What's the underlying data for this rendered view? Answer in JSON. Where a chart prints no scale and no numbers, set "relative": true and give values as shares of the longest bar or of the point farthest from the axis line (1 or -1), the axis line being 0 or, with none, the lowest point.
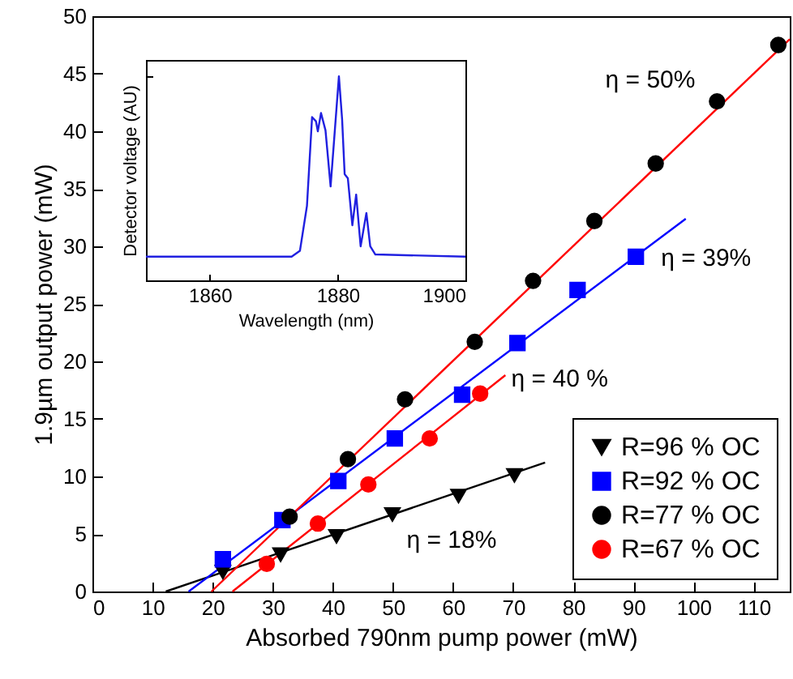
{
  "chart_data": [
    {
      "type": "scatter",
      "xlabel": "Absorbed 790nm pump power (mW)",
      "ylabel": "1.9µm output power (mW)",
      "xlim": [
        0,
        116
      ],
      "ylim": [
        0,
        50
      ],
      "xticks": [
        0,
        10,
        20,
        30,
        40,
        50,
        60,
        70,
        80,
        90,
        100,
        110
      ],
      "yticks": [
        0,
        5,
        10,
        15,
        20,
        25,
        30,
        35,
        40,
        45,
        50
      ],
      "grid": false,
      "legend": "bottom right",
      "series": [
        {
          "name": "R=96 % OC",
          "color": "#000000",
          "marker": "triangle",
          "x": [
            21.7,
            31.3,
            40.6,
            49.9,
            60.9,
            70.2
          ],
          "values": [
            1.7,
            3.2,
            4.8,
            6.7,
            8.3,
            10.1
          ]
        },
        {
          "name": "R=92 % OC",
          "color": "#0000ff",
          "marker": "square",
          "x": [
            21.7,
            31.6,
            40.9,
            50.3,
            61.5,
            70.7,
            80.7,
            90.4
          ],
          "values": [
            2.8,
            6.2,
            9.6,
            13.3,
            17.1,
            21.6,
            26.2,
            29.1
          ]
        },
        {
          "name": "R=77 % OC",
          "color": "#000000",
          "marker": "circle",
          "x": [
            32.8,
            42.5,
            52.0,
            63.6,
            73.3,
            83.5,
            93.7,
            103.9,
            114.1
          ],
          "values": [
            6.5,
            11.5,
            16.7,
            21.7,
            27.0,
            32.2,
            37.2,
            42.6,
            47.5
          ]
        },
        {
          "name": "R=67 % OC",
          "color": "#ff0000",
          "marker": "circle",
          "x": [
            29.0,
            37.5,
            45.9,
            56.1,
            64.5
          ],
          "values": [
            2.4,
            5.9,
            9.3,
            13.3,
            17.2
          ]
        },
        {
          "type": "line",
          "color": "#000000",
          "x": [
            12.2,
            75.3
          ],
          "values": [
            0,
            11.2
          ]
        },
        {
          "type": "line",
          "color": "#0000ff",
          "x": [
            16.0,
            98.7
          ],
          "values": [
            0,
            32.4
          ]
        },
        {
          "type": "line",
          "color": "#ff0000",
          "x": [
            19.8,
            116
          ],
          "values": [
            0,
            48
          ]
        },
        {
          "type": "line",
          "color": "#ff0000",
          "x": [
            23.3,
            68.7
          ],
          "values": [
            0,
            18.8
          ]
        }
      ],
      "annotations": [
        "η = 50%",
        "η = 39%",
        "η = 40 %",
        "η = 18%"
      ]
    },
    {
      "type": "line",
      "relative": true,
      "xlabel": "Wavelength (nm)",
      "ylabel": "Detector voltage (AU)",
      "xlim": [
        1850,
        1900
      ],
      "xticks": [
        1860,
        1880,
        1900
      ],
      "tick_labels": "x",
      "series": [
        {
          "color": "#2020e0",
          "x": [
            1850,
            1872.8,
            1874.1,
            1875.2,
            1876,
            1876.6,
            1876.9,
            1877.4,
            1878.1,
            1878.9,
            1880.2,
            1880.7,
            1881.1,
            1881.6,
            1882.3,
            1882.9,
            1883.6,
            1884.5,
            1885.1,
            1885.9,
            1900
          ],
          "values": [
            0.116,
            0.116,
            0.145,
            0.365,
            0.8,
            0.78,
            0.73,
            0.82,
            0.735,
            0.46,
            1.0,
            0.79,
            0.52,
            0.5,
            0.27,
            0.42,
            0.167,
            0.33,
            0.167,
            0.127,
            0.116
          ]
        }
      ]
    }
  ]
}
